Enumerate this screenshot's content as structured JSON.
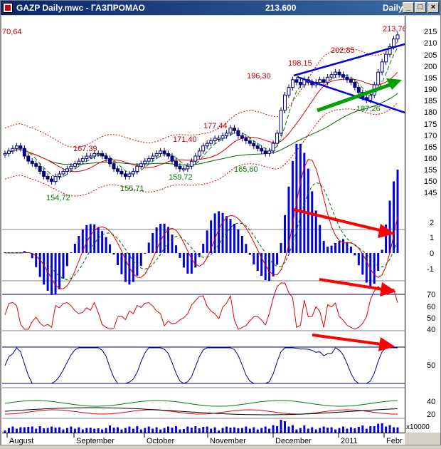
{
  "window": {
    "title": "GAZP Daily.mwc - ГАЗПРОМАО",
    "last_price": "213.600",
    "period": "Daily",
    "buttons": {
      "minimize": "_",
      "maximize": "□",
      "close": "×"
    }
  },
  "colors": {
    "candle": "#000080",
    "sma_short": "#e00000",
    "sma_fast": "#008000",
    "sma_long": "#006400",
    "band": "#e00000",
    "macd_hist": "#0000e0",
    "rsi": "#e00000",
    "stoch": "#000080",
    "line_blue": "#0000e0",
    "arrow_red": "#ff0000",
    "arrow_green": "#00a000"
  },
  "price_annotations": [
    {
      "text": "70,64",
      "color": "#c00000"
    },
    {
      "text": "167,39",
      "color": "#c00000"
    },
    {
      "text": "171,40",
      "color": "#c00000"
    },
    {
      "text": "177,44",
      "color": "#c00000"
    },
    {
      "text": "196,30",
      "color": "#c00000"
    },
    {
      "text": "198,15",
      "color": "#c00000"
    },
    {
      "text": "202,85",
      "color": "#c00000"
    },
    {
      "text": "213,76",
      "color": "#c00000"
    },
    {
      "text": "154,72",
      "color": "#008000"
    },
    {
      "text": "155,71",
      "color": "#008000"
    },
    {
      "text": "159,72",
      "color": "#008000"
    },
    {
      "text": "165,60",
      "color": "#008000"
    },
    {
      "text": "187,26",
      "color": "#008000"
    }
  ],
  "axis": {
    "price_ticks": [
      "215",
      "210",
      "205",
      "200",
      "195",
      "190",
      "185",
      "180",
      "175",
      "170",
      "165",
      "160",
      "155",
      "150",
      "145"
    ],
    "macd_ticks": [
      "2",
      "1",
      "0",
      "-1"
    ],
    "rsi_ticks": [
      "70",
      "60",
      "50",
      "40"
    ],
    "stoch_ticks": [
      "50"
    ],
    "adx_ticks": [
      "40",
      "20"
    ],
    "volume_label": "x10000",
    "months": [
      "August",
      "September",
      "October",
      "November",
      "December",
      "2011",
      "Febr"
    ]
  },
  "chart_data": {
    "type": "candlestick",
    "title": "GAZP Daily",
    "price_ylim": [
      140,
      218
    ],
    "close": [
      167,
      168,
      169,
      170,
      169,
      166,
      164,
      163,
      162,
      160,
      158,
      157,
      156,
      158,
      159,
      160,
      161,
      162,
      163,
      164,
      165,
      166,
      166,
      167,
      167,
      166,
      165,
      163,
      161,
      160,
      159,
      158,
      159,
      160,
      162,
      163,
      164,
      165,
      166,
      167,
      168,
      167,
      166,
      164,
      162,
      161,
      161,
      162,
      164,
      166,
      168,
      170,
      171,
      172,
      173,
      173,
      174,
      175,
      177,
      176,
      174,
      173,
      172,
      171,
      170,
      169,
      168,
      167,
      168,
      171,
      175,
      184,
      190,
      193,
      196,
      195,
      194,
      196,
      195,
      194,
      195,
      196,
      195,
      197,
      198,
      199,
      198,
      197,
      196,
      195,
      193,
      191,
      189,
      188,
      190,
      194,
      199,
      203,
      206,
      209,
      212,
      213.6
    ]
  }
}
